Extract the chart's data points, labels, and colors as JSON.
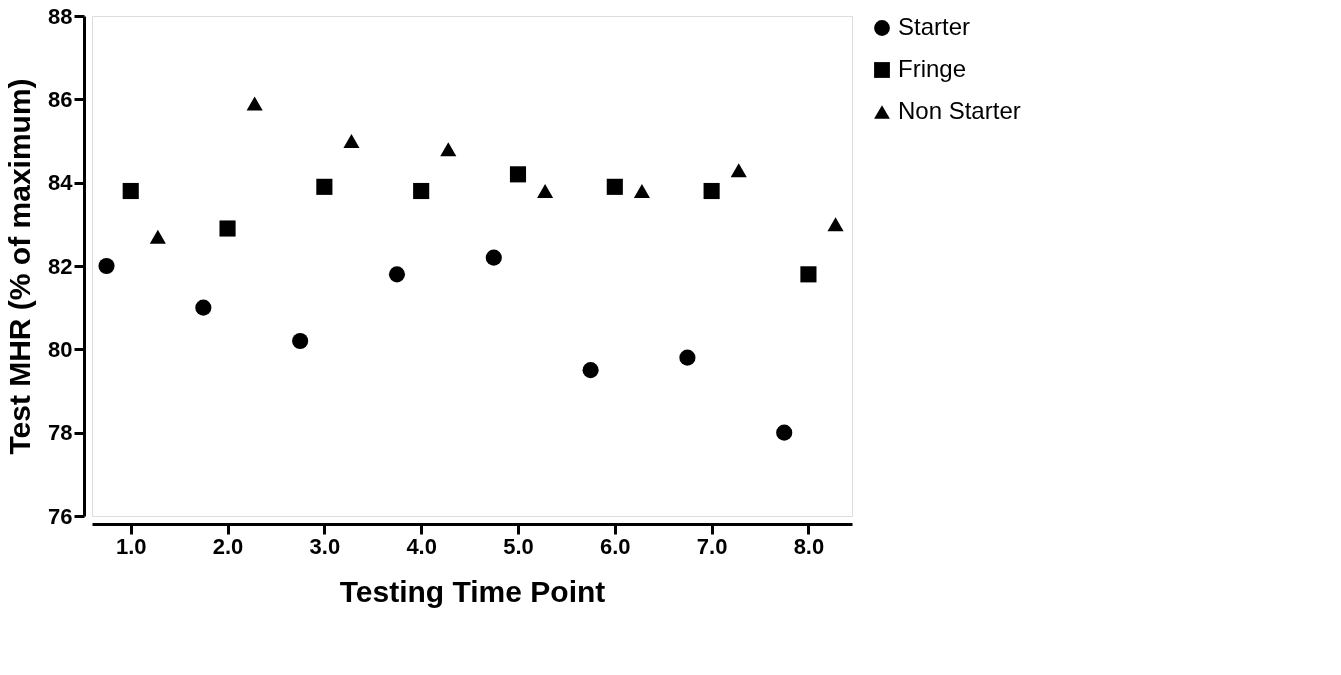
{
  "chart_data": {
    "type": "scatter",
    "xlabel": "Testing Time Point",
    "ylabel": "Test MHR (% of maximum)",
    "xlim": [
      0.6,
      8.45
    ],
    "ylim": [
      76,
      88
    ],
    "xticks": [
      {
        "value": 1,
        "label": "1.0"
      },
      {
        "value": 2,
        "label": "2.0"
      },
      {
        "value": 3,
        "label": "3.0"
      },
      {
        "value": 4,
        "label": "4.0"
      },
      {
        "value": 5,
        "label": "5.0"
      },
      {
        "value": 6,
        "label": "6.0"
      },
      {
        "value": 7,
        "label": "7.0"
      },
      {
        "value": 8,
        "label": "8.0"
      }
    ],
    "yticks": [
      76,
      78,
      80,
      82,
      84,
      86,
      88
    ],
    "grid": false,
    "legend": "top right",
    "series": [
      {
        "name": "Starter",
        "color": "#000000",
        "marker": "circle",
        "x": [
          0.75,
          1.75,
          2.75,
          3.75,
          4.75,
          5.75,
          6.75,
          7.75
        ],
        "values": [
          82.0,
          81.0,
          80.2,
          81.8,
          82.2,
          79.5,
          79.8,
          78.0
        ]
      },
      {
        "name": "Fringe",
        "color": "#000000",
        "marker": "square",
        "x": [
          1,
          2,
          3,
          4,
          5,
          6,
          7,
          8
        ],
        "values": [
          83.8,
          82.9,
          83.9,
          83.8,
          84.2,
          83.9,
          83.8,
          81.8
        ]
      },
      {
        "name": "Non Starter",
        "color": "#000000",
        "marker": "triangle",
        "x": [
          1.28,
          2.28,
          3.28,
          4.28,
          5.28,
          6.28,
          7.28,
          8.28
        ],
        "values": [
          82.7,
          85.9,
          85.0,
          84.8,
          83.8,
          83.8,
          84.3,
          83.0
        ]
      }
    ]
  }
}
